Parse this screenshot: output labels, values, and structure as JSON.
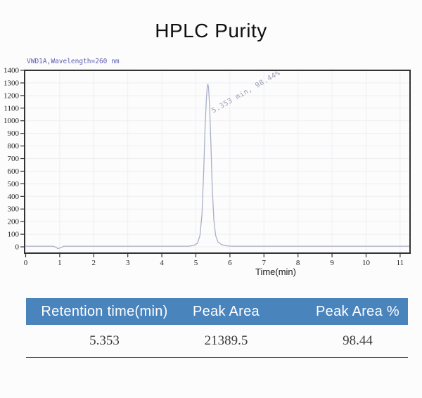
{
  "title": "HPLC Purity",
  "chart_data": {
    "type": "line",
    "title": "VWD1A,Wavelength=260 nm",
    "xlabel": "Time(min)",
    "ylabel": "",
    "xlim": [
      0,
      11.3
    ],
    "ylim": [
      -50,
      1400
    ],
    "xticks": [
      0,
      1,
      2,
      3,
      4,
      5,
      6,
      7,
      8,
      9,
      10,
      11
    ],
    "yticks": [
      0,
      100,
      200,
      300,
      400,
      500,
      600,
      700,
      800,
      900,
      1000,
      1100,
      1200,
      1300,
      1400
    ],
    "grid": true,
    "legend_position": "none",
    "colors": {
      "trace": "#a9b0c6",
      "grid": "#f0edf1",
      "frame": "#333333",
      "signal_label": "#5c5cb2",
      "annotation": "#9aa0b4"
    },
    "series": [
      {
        "name": "VWD1A,Wavelength=260 nm",
        "points": [
          [
            0,
            5
          ],
          [
            0.8,
            5
          ],
          [
            0.88,
            -2
          ],
          [
            0.95,
            -15
          ],
          [
            1.05,
            -4
          ],
          [
            1.12,
            5
          ],
          [
            4.8,
            5
          ],
          [
            4.95,
            12
          ],
          [
            5.05,
            30
          ],
          [
            5.12,
            90
          ],
          [
            5.18,
            260
          ],
          [
            5.23,
            600
          ],
          [
            5.27,
            950
          ],
          [
            5.31,
            1180
          ],
          [
            5.335,
            1270
          ],
          [
            5.353,
            1290
          ],
          [
            5.372,
            1265
          ],
          [
            5.4,
            1130
          ],
          [
            5.44,
            830
          ],
          [
            5.48,
            480
          ],
          [
            5.53,
            210
          ],
          [
            5.58,
            90
          ],
          [
            5.65,
            40
          ],
          [
            5.75,
            18
          ],
          [
            5.9,
            8
          ],
          [
            6.05,
            5
          ],
          [
            11.3,
            5
          ]
        ]
      }
    ],
    "annotation": {
      "text": "5.353 min, 98.44%",
      "x": 5.51,
      "y": 1060,
      "rotation_deg": -30
    },
    "peak": {
      "retention_time_min": 5.353,
      "area_percent": 98.44
    }
  },
  "table": {
    "header_bg": "#4a84bd",
    "columns": [
      "Retention time(min)",
      "Peak Area",
      "Peak Area %"
    ],
    "rows": [
      [
        "5.353",
        "21389.5",
        "98.44"
      ]
    ]
  }
}
